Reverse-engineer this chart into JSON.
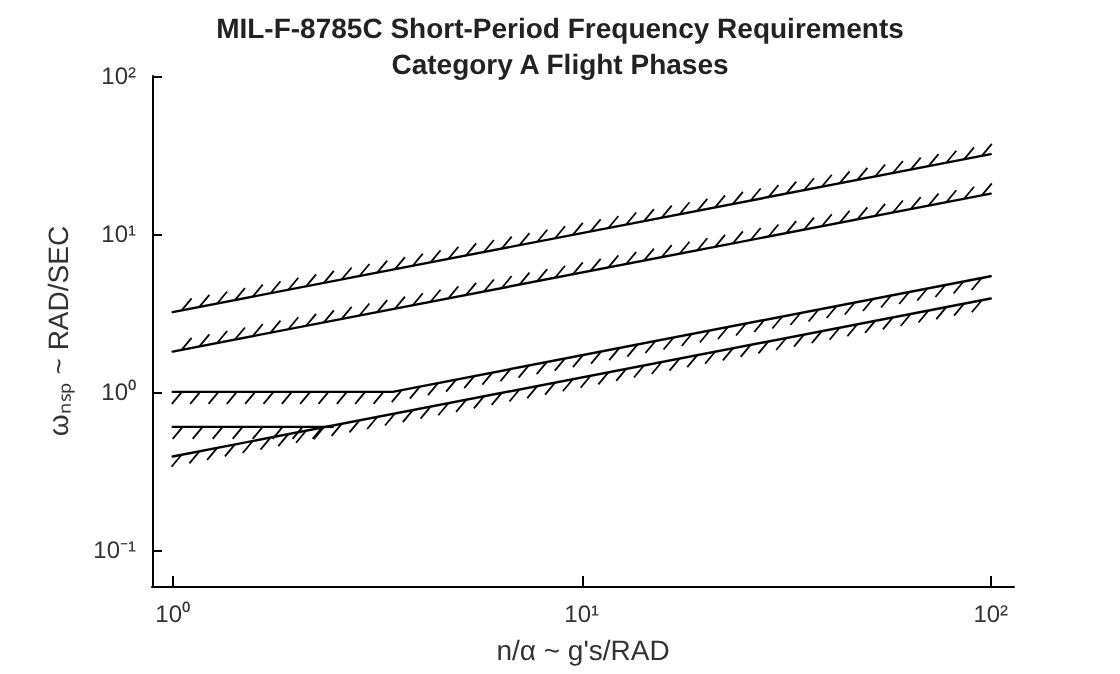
{
  "chart_data": {
    "type": "line",
    "title": "MIL-F-8785C Short-Period Frequency Requirements",
    "subtitle": "Category A Flight Phases",
    "xlabel": "n/α ~ g's/RAD",
    "ylabel": "ωₙₛₚ ~ RAD/SEC",
    "log": "xy",
    "grid": false,
    "marker": "none",
    "line_style": "solid",
    "xlim": [
      0.89,
      114
    ],
    "ylim": [
      0.059,
      100
    ],
    "xticks": [
      {
        "value": 1,
        "label": "10⁰"
      },
      {
        "value": 10,
        "label": "10¹"
      },
      {
        "value": 100,
        "label": "10²"
      }
    ],
    "yticks": [
      {
        "value": 0.1,
        "label": "10⁻¹"
      },
      {
        "value": 1,
        "label": "10⁰"
      },
      {
        "value": 10,
        "label": "10¹"
      },
      {
        "value": 100,
        "label": "10²"
      }
    ],
    "series": [
      {
        "color": "#000000",
        "x": [
          1,
          100
        ],
        "values": [
          3.2,
          32
        ]
      },
      {
        "color": "#000000",
        "x": [
          1,
          100
        ],
        "values": [
          1.8,
          18
        ]
      },
      {
        "color": "#000000",
        "x": [
          1,
          3.45,
          100
        ],
        "values": [
          1,
          1,
          5.4
        ]
      },
      {
        "color": "#000000",
        "x": [
          1,
          100
        ],
        "values": [
          0.39,
          3.9
        ]
      },
      {
        "color": "#000000",
        "x": [
          1,
          2.46
        ],
        "values": [
          0.6,
          0.6
        ]
      }
    ]
  }
}
